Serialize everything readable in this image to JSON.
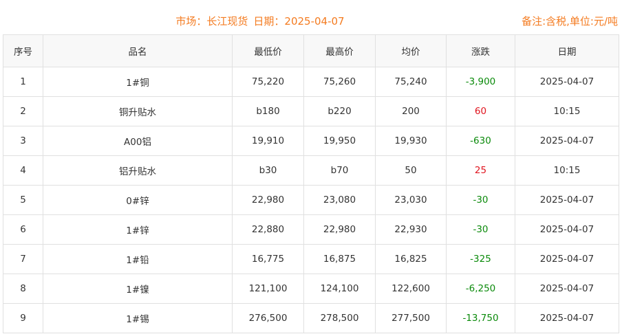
{
  "header": {
    "market_label": "市场：长江现货",
    "date_label": "日期：2025-04-07",
    "note": "备注:含税,单位:元/吨"
  },
  "colors": {
    "accent": "#f47b20",
    "down": "#0a8a0a",
    "up": "#e0141e"
  },
  "columns": [
    "序号",
    "品名",
    "最低价",
    "最高价",
    "均价",
    "涨跌",
    "日期"
  ],
  "rows": [
    [
      "1",
      "1#铜",
      "75,220",
      "75,260",
      "75,240",
      "-3,900",
      "2025-04-07"
    ],
    [
      "2",
      "铜升贴水",
      "b180",
      "b220",
      "200",
      "60",
      "10:15"
    ],
    [
      "3",
      "A00铝",
      "19,910",
      "19,950",
      "19,930",
      "-630",
      "2025-04-07"
    ],
    [
      "4",
      "铝升贴水",
      "b30",
      "b70",
      "50",
      "25",
      "10:15"
    ],
    [
      "5",
      "0#锌",
      "22,980",
      "23,080",
      "23,030",
      "-30",
      "2025-04-07"
    ],
    [
      "6",
      "1#锌",
      "22,880",
      "22,980",
      "22,930",
      "-30",
      "2025-04-07"
    ],
    [
      "7",
      "1#铅",
      "16,775",
      "16,875",
      "16,825",
      "-325",
      "2025-04-07"
    ],
    [
      "8",
      "1#镍",
      "121,100",
      "124,100",
      "122,600",
      "-6,250",
      "2025-04-07"
    ],
    [
      "9",
      "1#锡",
      "276,500",
      "278,500",
      "277,500",
      "-13,750",
      "2025-04-07"
    ]
  ]
}
